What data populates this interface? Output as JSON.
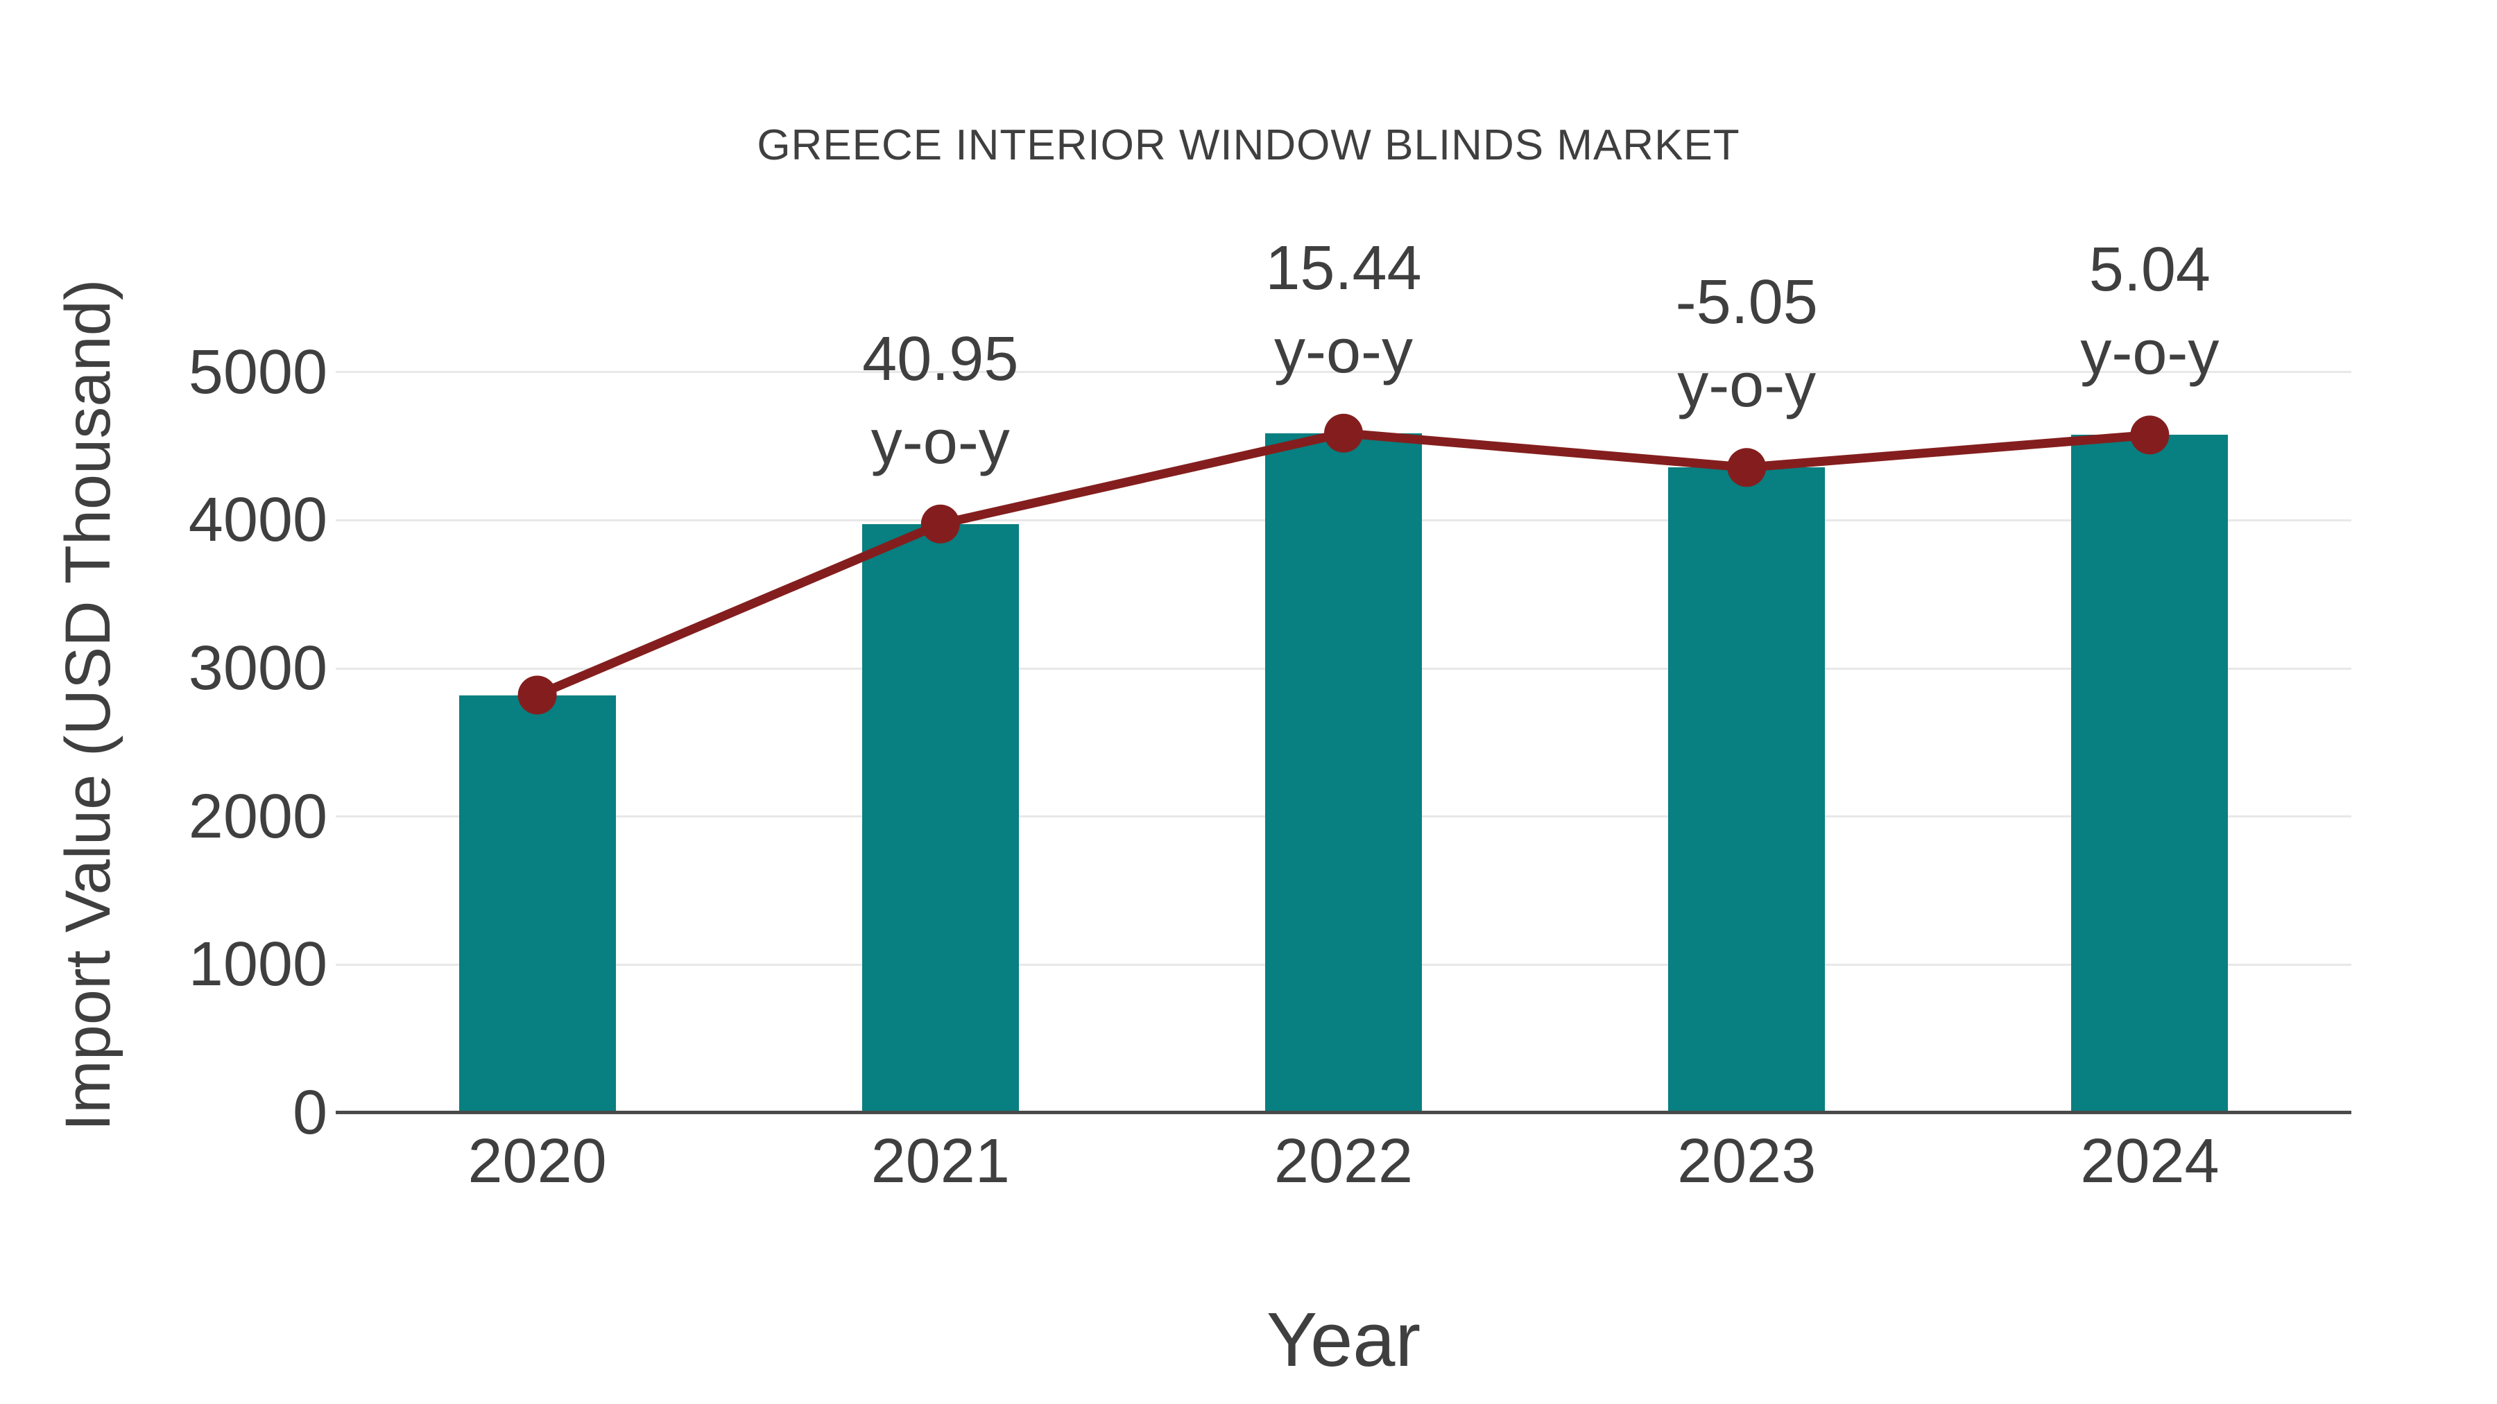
{
  "chart": {
    "title": "GREECE INTERIOR WINDOW BLINDS MARKET",
    "xlabel": "Year",
    "ylabel": "Import Value (USD Thousand)",
    "colors": {
      "bar": "#087f80",
      "line": "#841e1e",
      "marker": "#841e1e",
      "text": "#3f3f3f",
      "grid": "#e8e8e8",
      "axis": "#4a4a4a",
      "background": "#ffffff"
    }
  },
  "chart_data": {
    "type": "bar",
    "title": "GREECE INTERIOR WINDOW BLINDS MARKET",
    "xlabel": "Year",
    "ylabel": "Import Value (USD Thousand)",
    "categories": [
      "2020",
      "2021",
      "2022",
      "2023",
      "2024"
    ],
    "series": [
      {
        "name": "Import Value (USD Thousand)",
        "type": "bar",
        "values": [
          2820,
          3975,
          4588,
          4357,
          4576
        ]
      },
      {
        "name": "y-o-y growth (%)",
        "type": "line",
        "values": [
          2820,
          3975,
          4588,
          4357,
          4576
        ],
        "point_labels": [
          "",
          "40.95",
          "15.44",
          "-5.05",
          "5.04"
        ],
        "point_label_suffix": "y-o-y"
      }
    ],
    "yticks": [
      0,
      1000,
      2000,
      3000,
      4000,
      5000
    ],
    "ylim": [
      0,
      5500
    ],
    "grid": "horizontal",
    "legend": "none"
  }
}
